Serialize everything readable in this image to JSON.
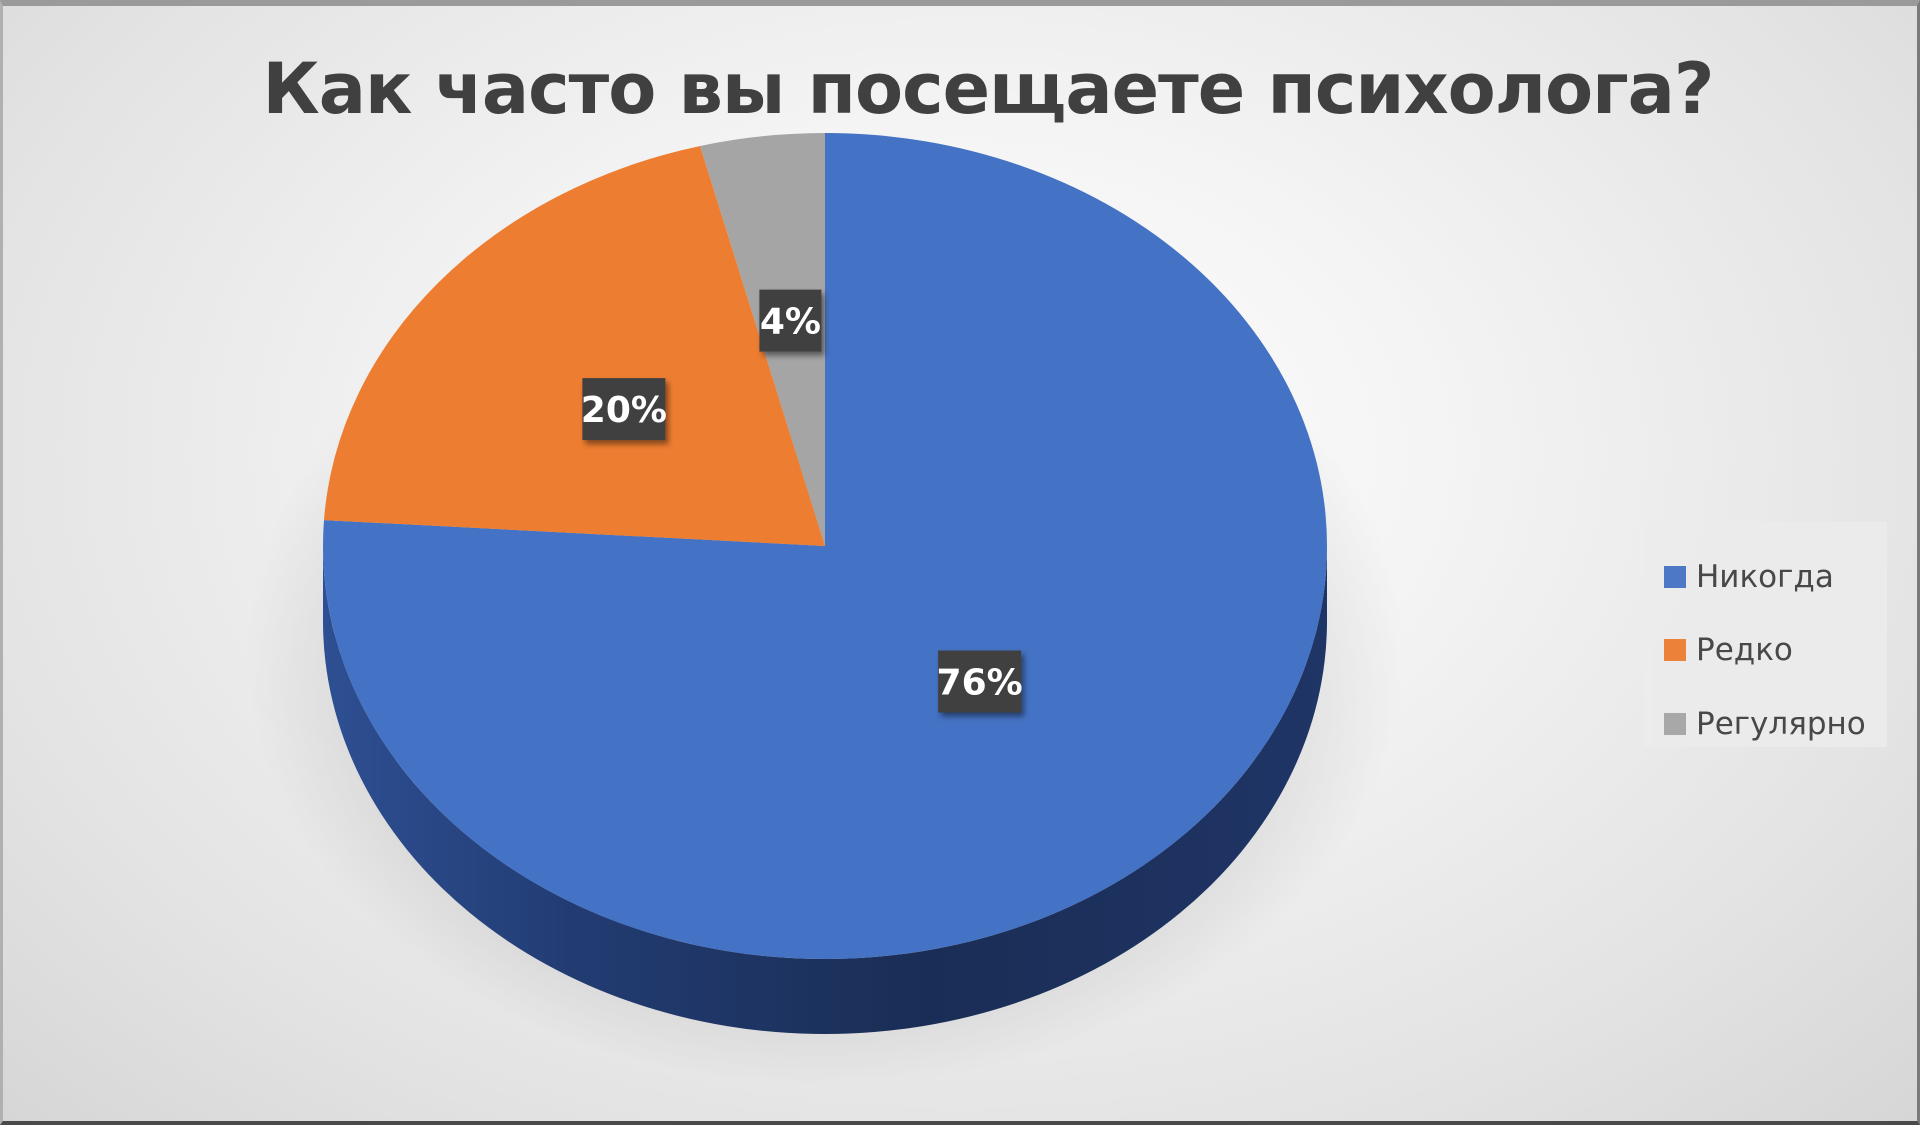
{
  "chart_data": {
    "type": "pie",
    "title": "Как часто вы посещаете психолога?",
    "categories": [
      "Никогда",
      "Редко",
      "Регулярно"
    ],
    "values": [
      76,
      20,
      4
    ],
    "labels": [
      "76%",
      "20%",
      "4%"
    ],
    "colors": [
      "#4472C4",
      "#ED7D31",
      "#A5A5A5"
    ],
    "legend_position": "right",
    "style": "3d"
  }
}
